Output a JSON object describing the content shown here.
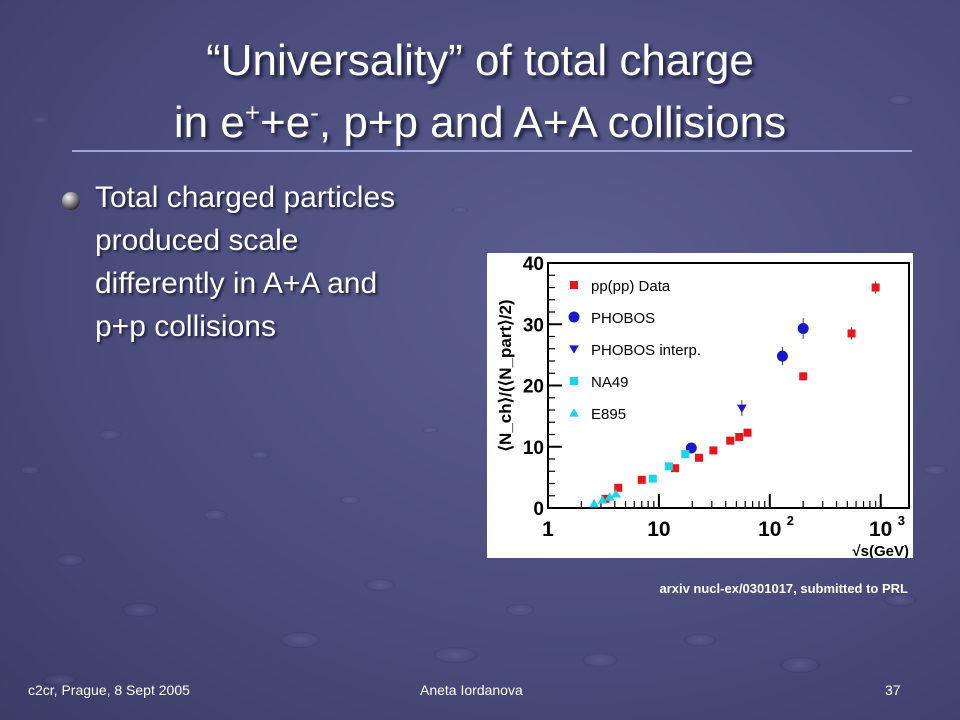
{
  "slide": {
    "title_line1": "“Universality” of total charge",
    "title_line2_a": "in e",
    "title_line2_sup1": "+",
    "title_line2_b": "+e",
    "title_line2_sup2": "-",
    "title_line2_c": ", p+p and A+A collisions",
    "bullet": "Total charged particles produced scale differently in A+A and p+p collisions",
    "caption": "arxiv nucl-ex/0301017, submitted to PRL",
    "footer_left": "c2cr, Prague, 8 Sept 2005",
    "footer_center": "Aneta Iordanova",
    "footer_right": "37"
  },
  "colors": {
    "title": "#ffffff",
    "rule": "#9da7e0",
    "pp": "#e8161c",
    "phobos": "#1a1acc",
    "na49": "#19d6e6",
    "e895": "#19d6e6"
  },
  "chart_data": {
    "type": "scatter",
    "x_scale": "log",
    "xlim": [
      1,
      1800
    ],
    "ylim": [
      0,
      40
    ],
    "xlabel": "√s(GeV)",
    "ylabel": "⟨N_ch⟩/(⟨N_part⟩/2)",
    "y_ticks": [
      0,
      10,
      20,
      30,
      40
    ],
    "x_tick_labels": [
      {
        "x": 1,
        "base": "1",
        "exp": ""
      },
      {
        "x": 10,
        "base": "10",
        "exp": ""
      },
      {
        "x": 100,
        "base": "10",
        "exp": "2"
      },
      {
        "x": 1000,
        "base": "10",
        "exp": "3"
      }
    ],
    "legend_position": "top-left",
    "series": [
      {
        "name": "pp(pp) Data",
        "marker": "square",
        "color": "#e8161c",
        "x": [
          3.3,
          4.3,
          7.0,
          14,
          23,
          31,
          44,
          53,
          63,
          200,
          546,
          900
        ],
        "y": [
          1.5,
          3.3,
          4.6,
          6.5,
          8.2,
          9.4,
          11.0,
          11.6,
          12.3,
          21.5,
          28.5,
          36.0
        ],
        "yerr": [
          0,
          0,
          0,
          0,
          0,
          0,
          0,
          0,
          0,
          0,
          1.0,
          1.0
        ]
      },
      {
        "name": "PHOBOS",
        "marker": "circle",
        "color": "#1a1acc",
        "x": [
          19.6,
          130,
          200
        ],
        "y": [
          9.8,
          24.8,
          29.3
        ],
        "yerr": [
          0.8,
          1.5,
          1.7
        ]
      },
      {
        "name": "PHOBOS interp.",
        "marker": "triangle-down",
        "color": "#1a1acc",
        "x": [
          56
        ],
        "y": [
          16.3
        ],
        "yerr": [
          1.3
        ]
      },
      {
        "name": "NA49",
        "marker": "square",
        "color": "#19d6e6",
        "x": [
          8.8,
          12.3,
          17.3
        ],
        "y": [
          4.8,
          6.8,
          8.8
        ],
        "yerr": [
          0,
          0,
          0
        ]
      },
      {
        "name": "E895",
        "marker": "triangle-up",
        "color": "#19d6e6",
        "x": [
          2.6,
          3.1,
          3.6,
          4.1
        ],
        "y": [
          0.7,
          1.3,
          1.8,
          2.3
        ],
        "yerr": [
          0,
          0,
          0,
          0
        ]
      }
    ]
  }
}
